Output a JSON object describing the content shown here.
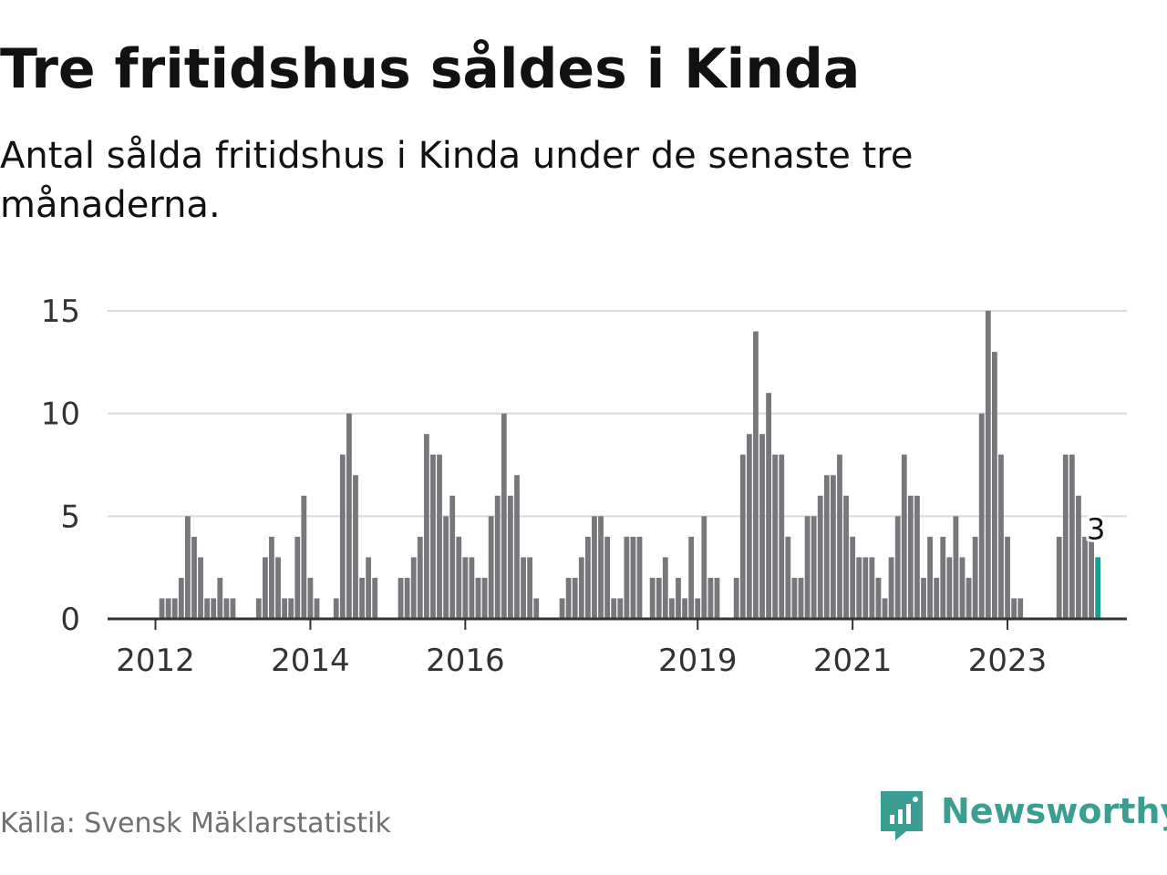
{
  "title": "Tre fritidshus såldes i Kinda",
  "subtitle": "Antal sålda fritidshus i Kinda under de senaste tre månaderna.",
  "source": "Källa: Svensk Mäklarstatistik",
  "brand": {
    "name": "Newsworthy",
    "color": "#3a9e93",
    "icon": "newsworthy-logo-icon"
  },
  "colors": {
    "bar": "#78787c",
    "highlight": "#1a9c92",
    "grid": "#d9d9d9",
    "axis": "#333333"
  },
  "chart_data": {
    "type": "bar",
    "ylim": [
      0,
      15
    ],
    "yticks": [
      0,
      5,
      10,
      15
    ],
    "xticks": [
      {
        "label": "2012",
        "index": 0
      },
      {
        "label": "2014",
        "index": 24
      },
      {
        "label": "2016",
        "index": 48
      },
      {
        "label": "2019",
        "index": 84
      },
      {
        "label": "2021",
        "index": 108
      },
      {
        "label": "2023",
        "index": 132
      }
    ],
    "start": "2011-11",
    "highlight_label": "3",
    "values": [
      0,
      1,
      1,
      1,
      2,
      5,
      4,
      3,
      1,
      1,
      2,
      1,
      1,
      0,
      0,
      0,
      1,
      3,
      4,
      3,
      1,
      1,
      4,
      6,
      2,
      1,
      0,
      0,
      1,
      8,
      10,
      7,
      2,
      3,
      2,
      0,
      0,
      0,
      2,
      2,
      3,
      4,
      9,
      8,
      8,
      5,
      6,
      4,
      3,
      3,
      2,
      2,
      5,
      6,
      10,
      6,
      7,
      3,
      3,
      1,
      0,
      0,
      0,
      1,
      2,
      2,
      3,
      4,
      5,
      5,
      4,
      1,
      1,
      4,
      4,
      4,
      0,
      2,
      2,
      3,
      1,
      2,
      1,
      4,
      1,
      5,
      2,
      2,
      0,
      0,
      2,
      8,
      9,
      14,
      9,
      11,
      8,
      8,
      4,
      2,
      2,
      5,
      5,
      6,
      7,
      7,
      8,
      6,
      4,
      3,
      3,
      3,
      2,
      1,
      3,
      5,
      8,
      6,
      6,
      2,
      4,
      2,
      4,
      3,
      5,
      3,
      2,
      4,
      10,
      15,
      13,
      8,
      4,
      1,
      1,
      0,
      0,
      0,
      0,
      0,
      4,
      8,
      8,
      6,
      4,
      4,
      3
    ]
  }
}
